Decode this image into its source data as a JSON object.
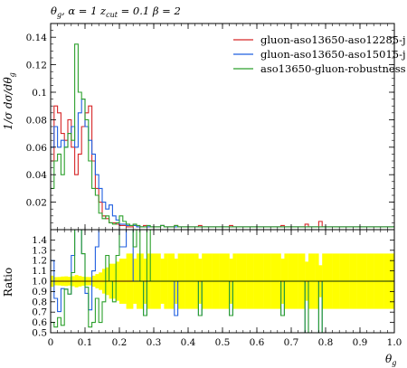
{
  "chart_data": {
    "type": "line",
    "title": "θ_g, α = 1 z_cut = 0.1 β = 2",
    "title_parts": {
      "var": "θ",
      "var_sub": "g",
      "mid": ", α = 1 z",
      "mid_sub": "cut",
      "tail": " = 0.1 β = 2"
    },
    "xlabel": "θ",
    "xlabel_sub": "g",
    "ylabel_top": "1/σ dσ/dθ",
    "ylabel_top_sub": "g",
    "ylabel_bottom": "Ratio",
    "xlim": [
      0,
      1.0
    ],
    "ylim_top": [
      0,
      0.15
    ],
    "ylim_bottom": [
      0.5,
      1.5
    ],
    "x_tick_labels": [
      "0",
      "0.1",
      "0.2",
      "0.3",
      "0.4",
      "0.5",
      "0.6",
      "0.7",
      "0.8",
      "0.9",
      "1.0"
    ],
    "y_tick_labels_top": [
      "0.02",
      "0.04",
      "0.06",
      "0.08",
      "0.1",
      "0.12",
      "0.14"
    ],
    "y_tick_labels_bottom": [
      "0.5",
      "0.6",
      "0.7",
      "0.8",
      "0.9",
      "1.0",
      "1.1",
      "1.2",
      "1.3",
      "1.4"
    ],
    "bin_width": 0.01,
    "legend_position": "top-right",
    "series": [
      {
        "name": "gluon-aso13650-aso12285-j",
        "color": "#d62728",
        "values": [
          0.05,
          0.09,
          0.085,
          0.07,
          0.065,
          0.08,
          0.06,
          0.04,
          0.055,
          0.075,
          0.085,
          0.09,
          0.05,
          0.03,
          0.02,
          0.01,
          0.008,
          0.005,
          0.005,
          0.004,
          0.003,
          0.003,
          0.002,
          0.002,
          0.003,
          0.002,
          0.002,
          0.003,
          0.002,
          0.002,
          0.002,
          0.002,
          0.003,
          0.002,
          0.002,
          0.002,
          0.003,
          0.002,
          0.002,
          0.002,
          0.002,
          0.002,
          0.002,
          0.003,
          0.002,
          0.002,
          0.002,
          0.002,
          0.002,
          0.002,
          0.002,
          0.002,
          0.003,
          0.002,
          0.002,
          0.002,
          0.002,
          0.002,
          0.002,
          0.002,
          0.002,
          0.002,
          0.002,
          0.002,
          0.002,
          0.002,
          0.002,
          0.003,
          0.002,
          0.002,
          0.002,
          0.002,
          0.002,
          0.002,
          0.004,
          0.002,
          0.002,
          0.002,
          0.006,
          0.002,
          0.002,
          0.002,
          0.002,
          0.002,
          0.002,
          0.002,
          0.002,
          0.002,
          0.002,
          0.002,
          0.002,
          0.002,
          0.002,
          0.002,
          0.002,
          0.002,
          0.002,
          0.002,
          0.002,
          0.002
        ]
      },
      {
        "name": "gluon-aso13650-aso15015-j",
        "color": "#1f5fe0",
        "values": [
          0.06,
          0.075,
          0.06,
          0.065,
          0.06,
          0.07,
          0.075,
          0.06,
          0.085,
          0.095,
          0.075,
          0.065,
          0.055,
          0.04,
          0.03,
          0.02,
          0.015,
          0.018,
          0.01,
          0.007,
          0.004,
          0.004,
          0.003,
          0.003,
          0.003,
          0.002,
          0.002,
          0.002,
          0.002,
          0.002,
          0.002,
          0.002,
          0.003,
          0.002,
          0.002,
          0.002,
          0.002,
          0.002,
          0.002,
          0.002,
          0.002,
          0.002,
          0.002,
          0.002,
          0.002,
          0.002,
          0.002,
          0.002,
          0.002,
          0.002,
          0.002,
          0.002,
          0.002,
          0.002,
          0.002,
          0.002,
          0.002,
          0.002,
          0.002,
          0.002,
          0.002,
          0.002,
          0.002,
          0.002,
          0.002,
          0.002,
          0.002,
          0.002,
          0.002,
          0.002,
          0.002,
          0.002,
          0.002,
          0.002,
          0.002,
          0.002,
          0.002,
          0.002,
          0.002,
          0.002,
          0.002,
          0.002,
          0.002,
          0.002,
          0.002,
          0.002,
          0.002,
          0.002,
          0.002,
          0.002,
          0.002,
          0.002,
          0.002,
          0.002,
          0.002,
          0.002,
          0.002,
          0.002,
          0.002,
          0.002
        ]
      },
      {
        "name": "aso13650-gluon-robustness",
        "color": "#2ca02c",
        "values": [
          0.03,
          0.05,
          0.055,
          0.04,
          0.06,
          0.07,
          0.065,
          0.135,
          0.1,
          0.095,
          0.08,
          0.05,
          0.03,
          0.025,
          0.012,
          0.008,
          0.01,
          0.005,
          0.004,
          0.005,
          0.01,
          0.006,
          0.004,
          0.003,
          0.004,
          0.003,
          0.002,
          0.002,
          0.003,
          0.002,
          0.002,
          0.002,
          0.003,
          0.002,
          0.002,
          0.002,
          0.003,
          0.002,
          0.002,
          0.002,
          0.002,
          0.002,
          0.002,
          0.002,
          0.002,
          0.002,
          0.002,
          0.002,
          0.002,
          0.002,
          0.002,
          0.002,
          0.002,
          0.002,
          0.002,
          0.002,
          0.002,
          0.002,
          0.002,
          0.002,
          0.002,
          0.002,
          0.002,
          0.002,
          0.002,
          0.002,
          0.002,
          0.002,
          0.002,
          0.002,
          0.002,
          0.002,
          0.002,
          0.002,
          0.002,
          0.002,
          0.002,
          0.002,
          0.002,
          0.002,
          0.002,
          0.002,
          0.002,
          0.002,
          0.002,
          0.002,
          0.002,
          0.002,
          0.002,
          0.002,
          0.002,
          0.002,
          0.002,
          0.002,
          0.002,
          0.002,
          0.002,
          0.002,
          0.002,
          0.002
        ]
      }
    ],
    "ratio_band_color": "#ffff00"
  }
}
